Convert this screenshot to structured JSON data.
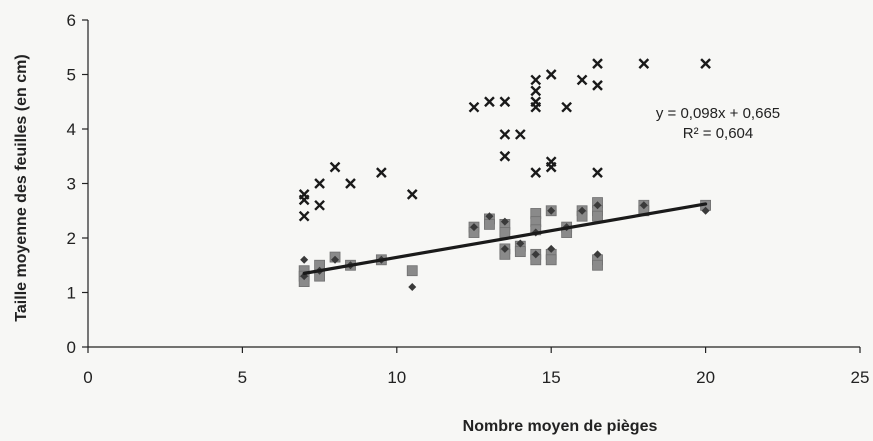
{
  "chart_data": {
    "type": "scatter",
    "xlabel": "Nombre moyen de pièges",
    "ylabel": "Taille moyenne des feuilles (en cm)",
    "xlim": [
      0,
      25
    ],
    "ylim": [
      0,
      6
    ],
    "x_ticks": [
      "0",
      "5",
      "10",
      "15",
      "20",
      "25"
    ],
    "y_ticks": [
      "0",
      "1",
      "2",
      "3",
      "4",
      "5",
      "6"
    ],
    "grid": false,
    "legend": "none",
    "annotations": [
      "y = 0,098x + 0,665",
      "R² = 0,604"
    ],
    "trendline": {
      "slope": 0.098,
      "intercept": 0.665,
      "x_range": [
        7,
        20
      ],
      "r2": 0.604
    },
    "series": [
      {
        "marker": "x",
        "color": "#1a1a1a",
        "points": [
          [
            7,
            2.8
          ],
          [
            7,
            2.7
          ],
          [
            7,
            2.4
          ],
          [
            7.5,
            3.0
          ],
          [
            7.5,
            2.6
          ],
          [
            8,
            3.3
          ],
          [
            8.5,
            3.0
          ],
          [
            9.5,
            3.2
          ],
          [
            10.5,
            2.8
          ],
          [
            12.5,
            4.4
          ],
          [
            13,
            4.5
          ],
          [
            13.5,
            4.5
          ],
          [
            13.5,
            3.9
          ],
          [
            13.5,
            3.5
          ],
          [
            14,
            3.9
          ],
          [
            14.5,
            4.9
          ],
          [
            14.5,
            4.7
          ],
          [
            14.5,
            4.5
          ],
          [
            14.5,
            4.4
          ],
          [
            14.5,
            3.2
          ],
          [
            15,
            5.0
          ],
          [
            15,
            3.4
          ],
          [
            15,
            3.3
          ],
          [
            15.5,
            4.4
          ],
          [
            16,
            4.9
          ],
          [
            16.5,
            5.2
          ],
          [
            16.5,
            4.8
          ],
          [
            16.5,
            3.2
          ],
          [
            18,
            5.2
          ],
          [
            20,
            5.2
          ]
        ]
      },
      {
        "marker": "square",
        "color": "#8a8a8a",
        "points": [
          [
            7,
            1.4
          ],
          [
            7,
            1.3
          ],
          [
            7,
            1.2
          ],
          [
            7.5,
            1.5
          ],
          [
            7.5,
            1.3
          ],
          [
            8,
            1.65
          ],
          [
            8.5,
            1.5
          ],
          [
            9.5,
            1.6
          ],
          [
            10.5,
            1.4
          ],
          [
            12.5,
            2.2
          ],
          [
            12.5,
            2.1
          ],
          [
            13,
            2.35
          ],
          [
            13,
            2.25
          ],
          [
            13.5,
            2.25
          ],
          [
            13.5,
            2.1
          ],
          [
            13.5,
            1.8
          ],
          [
            13.5,
            1.7
          ],
          [
            14,
            1.85
          ],
          [
            14,
            1.75
          ],
          [
            14.5,
            2.45
          ],
          [
            14.5,
            2.3
          ],
          [
            14.5,
            2.15
          ],
          [
            14.5,
            1.7
          ],
          [
            14.5,
            1.6
          ],
          [
            15,
            2.5
          ],
          [
            15,
            1.7
          ],
          [
            15,
            1.6
          ],
          [
            15.5,
            2.2
          ],
          [
            15.5,
            2.1
          ],
          [
            16,
            2.5
          ],
          [
            16,
            2.4
          ],
          [
            16.5,
            2.65
          ],
          [
            16.5,
            2.5
          ],
          [
            16.5,
            2.4
          ],
          [
            16.5,
            1.6
          ],
          [
            16.5,
            1.5
          ],
          [
            18,
            2.6
          ],
          [
            18,
            2.5
          ],
          [
            20,
            2.6
          ]
        ]
      },
      {
        "marker": "diamond",
        "color": "#3a3a3a",
        "points": [
          [
            7,
            1.6
          ],
          [
            7,
            1.3
          ],
          [
            7.5,
            1.4
          ],
          [
            8,
            1.6
          ],
          [
            8.5,
            1.5
          ],
          [
            9.5,
            1.6
          ],
          [
            10.5,
            1.1
          ],
          [
            12.5,
            2.2
          ],
          [
            13,
            2.4
          ],
          [
            13.5,
            2.3
          ],
          [
            13.5,
            1.8
          ],
          [
            14,
            1.9
          ],
          [
            14.5,
            2.1
          ],
          [
            14.5,
            1.7
          ],
          [
            15,
            1.8
          ],
          [
            15,
            2.5
          ],
          [
            15.5,
            2.2
          ],
          [
            16,
            2.5
          ],
          [
            16.5,
            1.7
          ],
          [
            16.5,
            2.6
          ],
          [
            18,
            2.6
          ],
          [
            20,
            2.5
          ]
        ]
      }
    ]
  }
}
